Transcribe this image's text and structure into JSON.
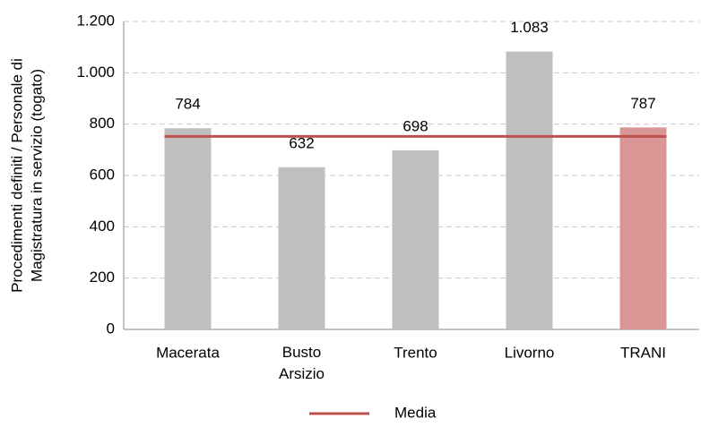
{
  "chart_data": {
    "type": "bar",
    "ylabel": [
      "Procedimenti definiti / Personale di",
      "Magistratura in servizio (togato)"
    ],
    "categories": [
      "Macerata",
      "Busto Arsizio",
      "Trento",
      "Livorno",
      "TRANI"
    ],
    "values": [
      784,
      632,
      698,
      1083,
      787
    ],
    "value_labels": [
      "784",
      "632",
      "698",
      "1.083",
      "787"
    ],
    "colors": [
      "#bfbfbf",
      "#bfbfbf",
      "#bfbfbf",
      "#bfbfbf",
      "#d99694"
    ],
    "series": [
      {
        "name": "Media",
        "color": "#c0504d",
        "values": [
          752,
          752,
          752,
          752,
          752
        ]
      }
    ],
    "ylim": [
      0,
      1200
    ],
    "yticks": [
      0,
      200,
      400,
      600,
      800,
      {
        "value": 1000,
        "label": "1.000"
      },
      {
        "value": 1200,
        "label": "1.200"
      }
    ],
    "grid": true,
    "legend": "bottom"
  }
}
